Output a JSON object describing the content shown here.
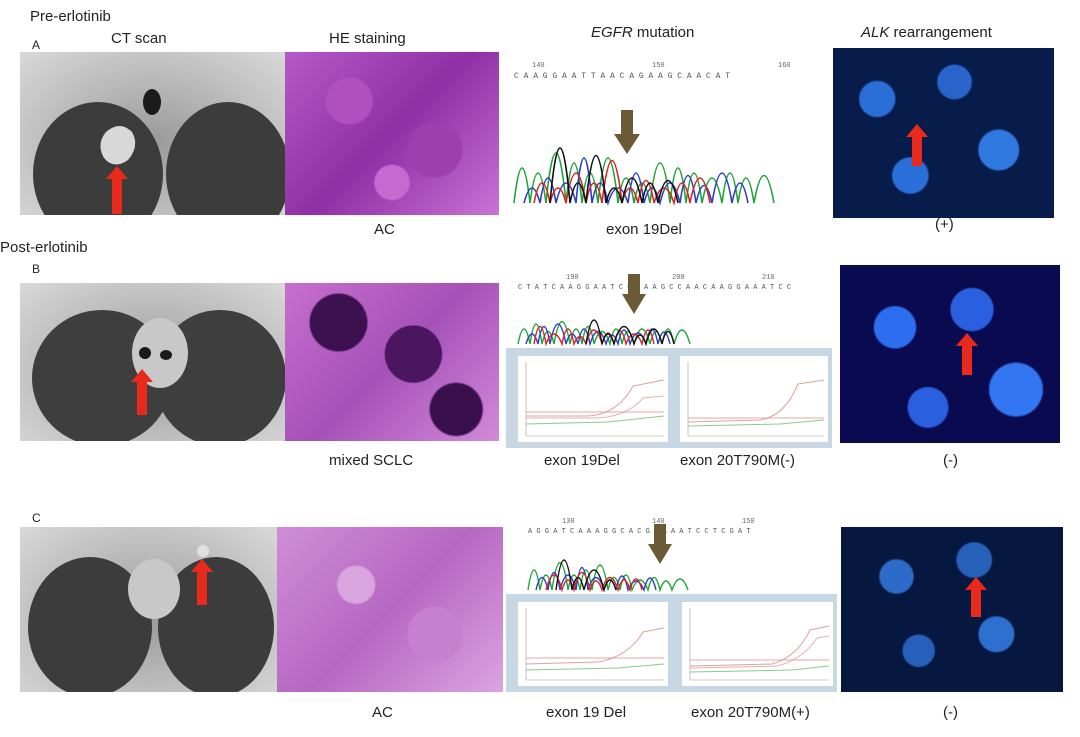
{
  "row_labels": {
    "pre": "Pre-erlotinib",
    "a": "A",
    "post": "Post-erlotinib",
    "b": "B",
    "c": "C"
  },
  "column_headers": {
    "ct": "CT scan",
    "he": "HE staining",
    "egfr_italic": "EGFR",
    "egfr_rest": " mutation",
    "alk_italic": "ALK",
    "alk_rest": " rearrangement"
  },
  "captions": {
    "a_he": "AC",
    "a_egfr": "exon 19Del",
    "a_alk": "(+)",
    "b_he": "mixed SCLC",
    "b_egfr_left": "exon 19Del",
    "b_egfr_right": "exon 20T790M(-)",
    "b_alk": "(-)",
    "c_he": "AC",
    "c_egfr_left": "exon 19 Del",
    "c_egfr_right": "exon 20T790M(+)",
    "c_alk": "(-)"
  },
  "sequences": {
    "a": "C A A G G A A T T A A C A G A A G C A A C A T",
    "a_ticks": [
      "140",
      "150",
      "160"
    ],
    "b": "C T A T C A A G G A A T C G A A A G C C A A C A A G G A A A T C C",
    "b_ticks": [
      "190",
      "200",
      "210"
    ],
    "c": "A G G A T C A A A G G C A C G G A A A T C C T C G A T",
    "c_ticks": [
      "130",
      "140",
      "150"
    ]
  },
  "colors": {
    "arrow_red": "#e82a1c",
    "arrow_brown": "#6b5a36",
    "trace_green": "#22a33a",
    "trace_blue": "#2b3fc4",
    "trace_red": "#d92424",
    "trace_black": "#111111",
    "pcr_border": "#c7d7e3"
  }
}
